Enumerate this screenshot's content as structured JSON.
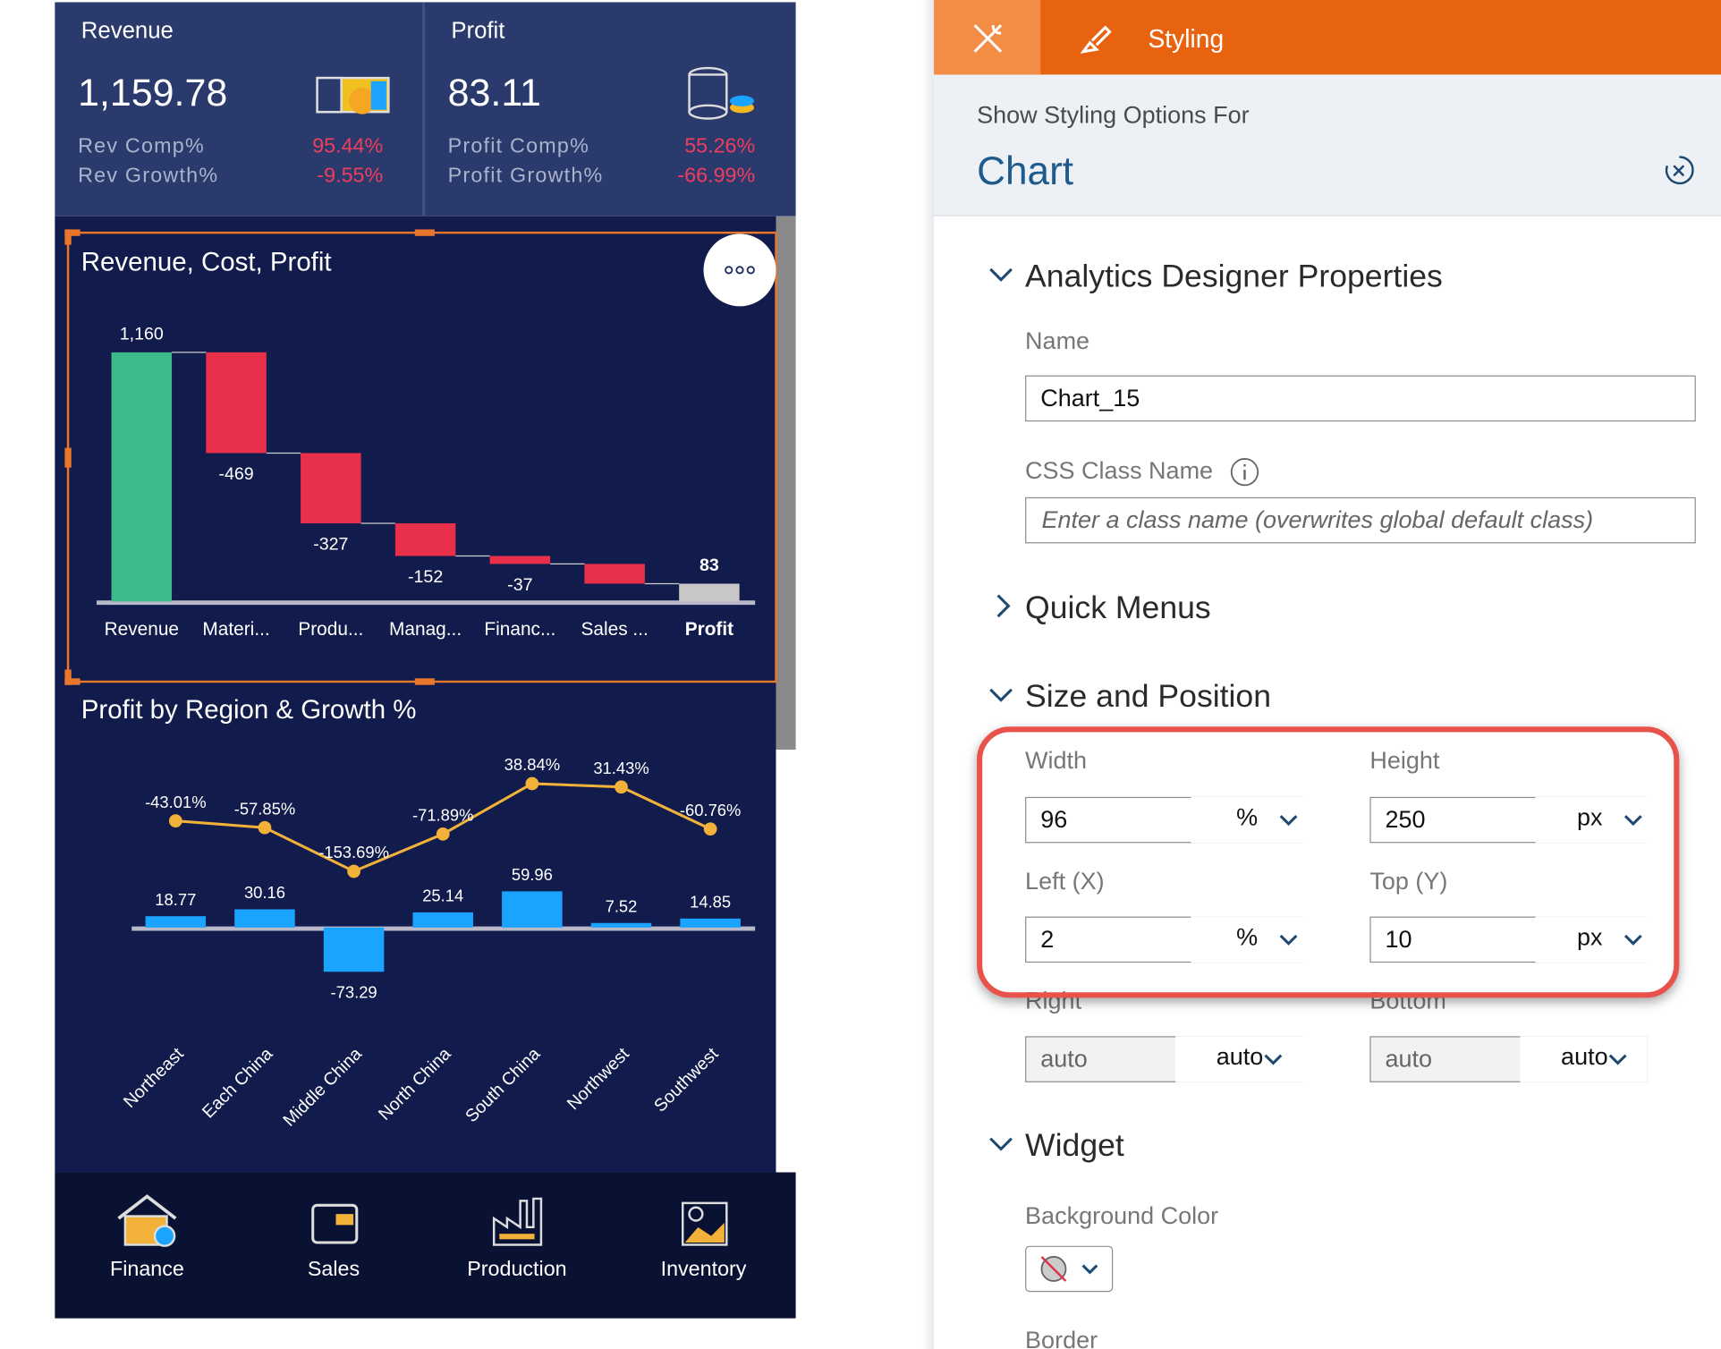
{
  "kpis": [
    {
      "title": "Revenue",
      "value": "1,159.78",
      "rows": [
        {
          "label": "Rev Comp%",
          "value": "95.44%"
        },
        {
          "label": "Rev Growth%",
          "value": "-9.55%"
        }
      ]
    },
    {
      "title": "Profit",
      "value": "83.11",
      "rows": [
        {
          "label": "Profit Comp%",
          "value": "55.26%"
        },
        {
          "label": "Profit Growth%",
          "value": "-66.99%"
        }
      ]
    }
  ],
  "chart_data": [
    {
      "type": "waterfall",
      "title": "Revenue, Cost, Profit",
      "categories": [
        "Revenue",
        "Materi...",
        "Produ...",
        "Manag...",
        "Financ...",
        "Sales ...",
        "Profit"
      ],
      "values": [
        1160,
        -469,
        -327,
        -152,
        -37,
        -92,
        83
      ],
      "value_labels": [
        "1,160",
        "-469",
        "-327",
        "-152",
        "-37",
        null,
        "83"
      ],
      "increase_color": "#3dba8c",
      "decrease_color": "#e8304a",
      "total_color": "#c8c8c8"
    },
    {
      "type": "bar-line",
      "title": "Profit by Region & Growth %",
      "categories": [
        "Northeast",
        "Each China",
        "Middle China",
        "North China",
        "South China",
        "Northwest",
        "Southwest"
      ],
      "series": [
        {
          "type": "bar",
          "color": "#1aa3ff",
          "values": [
            18.77,
            30.16,
            -73.29,
            25.14,
            59.96,
            7.52,
            14.85
          ]
        },
        {
          "type": "line",
          "axis": "y2",
          "color": "#f2b23a",
          "values": [
            -43.01,
            -57.85,
            -153.69,
            -71.89,
            38.84,
            31.43,
            -60.76
          ],
          "value_labels": [
            "-43.01%",
            "-57.85%",
            "-153.69%",
            "-71.89%",
            "38.84%",
            "31.43%",
            "-60.76%"
          ]
        }
      ]
    }
  ],
  "nav": [
    "Finance",
    "Sales",
    "Production",
    "Inventory"
  ],
  "panel": {
    "tab": "Styling",
    "options_for": "Show Styling Options For",
    "target": "Chart",
    "designer": {
      "title": "Analytics Designer Properties",
      "name_label": "Name",
      "name_value": "Chart_15",
      "css_label": "CSS Class Name",
      "css_placeholder": "Enter a class name (overwrites global default class)"
    },
    "quick_menus": "Quick Menus",
    "size": {
      "title": "Size and Position",
      "fields": [
        {
          "label": "Width",
          "value": "96",
          "unit": "%"
        },
        {
          "label": "Height",
          "value": "250",
          "unit": "px"
        },
        {
          "label": "Left (X)",
          "value": "2",
          "unit": "%"
        },
        {
          "label": "Top (Y)",
          "value": "10",
          "unit": "px"
        },
        {
          "label": "Right",
          "value": "auto",
          "unit": "auto"
        },
        {
          "label": "Bottom",
          "value": "auto",
          "unit": "auto"
        }
      ]
    },
    "widget": {
      "title": "Widget",
      "background_label": "Background Color",
      "border_label": "Border"
    }
  }
}
